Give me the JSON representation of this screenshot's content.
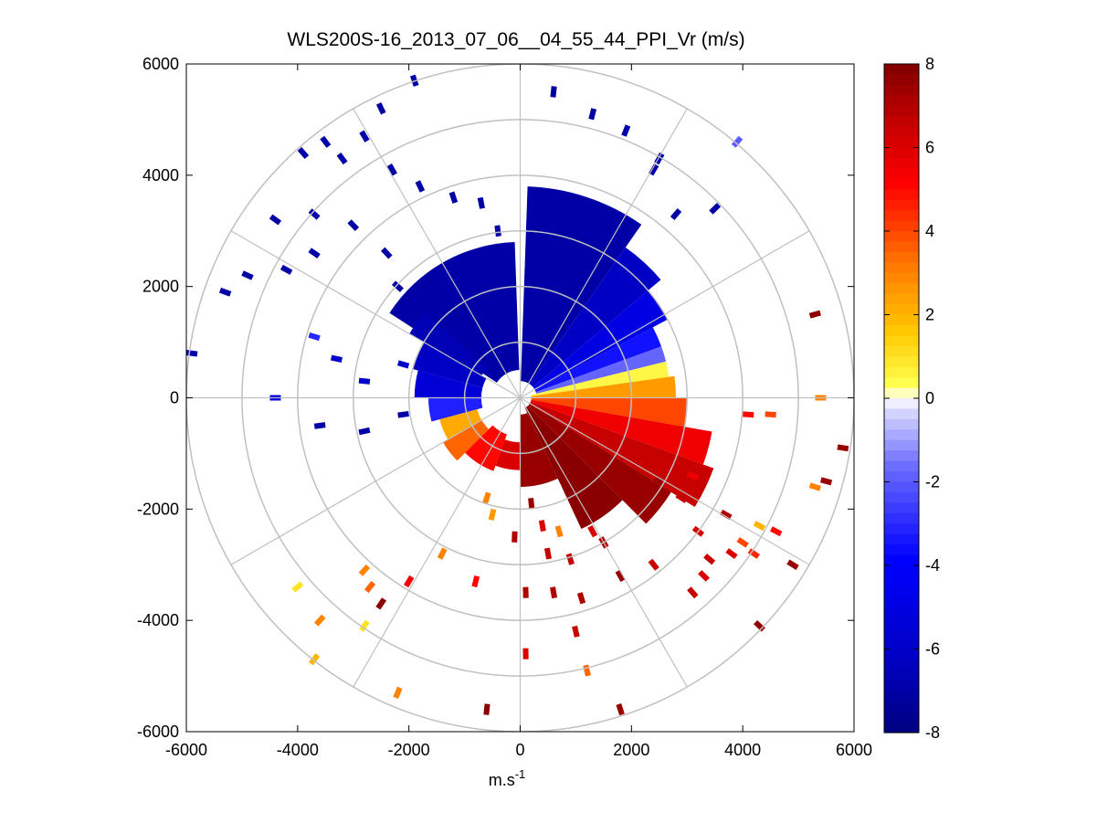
{
  "chart_data": {
    "type": "polar-ppi",
    "title": "WLS200S-16_2013_07_06__04_55_44_PPI_Vr (m/s)",
    "xlabel": "m.s",
    "xlabel_superscript": "-1",
    "ylabel": "",
    "xlim": [
      -6000,
      6000
    ],
    "ylim": [
      -6000,
      6000
    ],
    "x_ticks": [
      -6000,
      -4000,
      -2000,
      0,
      2000,
      4000,
      6000
    ],
    "y_ticks": [
      6000,
      4000,
      2000,
      0,
      -2000,
      -4000,
      -6000
    ],
    "x_tick_labels": [
      "-6000",
      "-4000",
      "-2000",
      "0",
      "2000",
      "4000",
      "6000"
    ],
    "y_tick_labels": [
      "6000",
      "4000",
      "2000",
      "0",
      "-2000",
      "-4000",
      "-6000"
    ],
    "range_rings": [
      1000,
      2000,
      3000,
      4000,
      5000,
      6000
    ],
    "radial_spokes_deg": [
      0,
      30,
      60,
      90,
      120,
      150,
      180,
      210,
      240,
      270,
      300,
      330
    ],
    "colorbar": {
      "min": -8,
      "max": 8,
      "ticks": [
        8,
        6,
        4,
        2,
        0,
        -2,
        -4,
        -6,
        -8
      ],
      "tick_labels": [
        "8",
        "6",
        "4",
        "2",
        "0",
        "-2",
        "-4",
        "-6",
        "-8"
      ]
    },
    "sectors": [
      {
        "az_start": 303,
        "az_end": 358,
        "r_start": 500,
        "r_end": 2800,
        "vr": -7.0
      },
      {
        "az_start": 300,
        "az_end": 312,
        "r_start": 800,
        "r_end": 2300,
        "vr": -6.6
      },
      {
        "az_start": 285,
        "az_end": 300,
        "r_start": 700,
        "r_end": 2000,
        "vr": -6.2
      },
      {
        "az_start": 270,
        "az_end": 285,
        "r_start": 700,
        "r_end": 1900,
        "vr": -5.5
      },
      {
        "az_start": 255,
        "az_end": 270,
        "r_start": 700,
        "r_end": 1650,
        "vr": -3.2
      },
      {
        "az_start": 240,
        "az_end": 255,
        "r_start": 800,
        "r_end": 1500,
        "vr": 2.2
      },
      {
        "az_start": 225,
        "az_end": 240,
        "r_start": 800,
        "r_end": 1600,
        "vr": 3.5
      },
      {
        "az_start": 200,
        "az_end": 225,
        "r_start": 700,
        "r_end": 1400,
        "vr": 5.0
      },
      {
        "az_start": 2,
        "az_end": 35,
        "r_start": 300,
        "r_end": 3800,
        "vr": -7.0
      },
      {
        "az_start": 35,
        "az_end": 50,
        "r_start": 300,
        "r_end": 3300,
        "vr": -6.2
      },
      {
        "az_start": 50,
        "az_end": 62,
        "r_start": 300,
        "r_end": 3000,
        "vr": -5.0
      },
      {
        "az_start": 62,
        "az_end": 70,
        "r_start": 300,
        "r_end": 2700,
        "vr": -3.5
      },
      {
        "az_start": 70,
        "az_end": 76,
        "r_start": 300,
        "r_end": 2700,
        "vr": -1.8
      },
      {
        "az_start": 76,
        "az_end": 82,
        "r_start": 200,
        "r_end": 2700,
        "vr": 0.5
      },
      {
        "az_start": 82,
        "az_end": 90,
        "r_start": 200,
        "r_end": 2800,
        "vr": 2.5
      },
      {
        "az_start": 90,
        "az_end": 100,
        "r_start": 200,
        "r_end": 3000,
        "vr": 4.0
      },
      {
        "az_start": 100,
        "az_end": 110,
        "r_start": 200,
        "r_end": 3500,
        "vr": 5.5
      },
      {
        "az_start": 110,
        "az_end": 122,
        "r_start": 200,
        "r_end": 3700,
        "vr": 6.5
      },
      {
        "az_start": 122,
        "az_end": 135,
        "r_start": 200,
        "r_end": 3200,
        "vr": 7.5
      },
      {
        "az_start": 135,
        "az_end": 155,
        "r_start": 200,
        "r_end": 2600,
        "vr": 7.8
      },
      {
        "az_start": 155,
        "az_end": 180,
        "r_start": 300,
        "r_end": 1600,
        "vr": 7.5
      },
      {
        "az_start": 180,
        "az_end": 200,
        "r_start": 800,
        "r_end": 1300,
        "vr": 6.0
      }
    ],
    "scatter_cells": [
      {
        "x": -5900,
        "y": 800,
        "vr": -7.0
      },
      {
        "x": -5300,
        "y": 1900,
        "vr": -7.0
      },
      {
        "x": -4900,
        "y": 2200,
        "vr": -7.0
      },
      {
        "x": -4400,
        "y": 3200,
        "vr": -7.0
      },
      {
        "x": -3900,
        "y": 4400,
        "vr": -7.0
      },
      {
        "x": -3500,
        "y": 4600,
        "vr": -7.0
      },
      {
        "x": -3200,
        "y": 4300,
        "vr": -7.0
      },
      {
        "x": -2800,
        "y": 4700,
        "vr": -7.0
      },
      {
        "x": -2500,
        "y": 5200,
        "vr": -7.0
      },
      {
        "x": -1900,
        "y": 5700,
        "vr": -7.0
      },
      {
        "x": -2300,
        "y": 4100,
        "vr": -7.0
      },
      {
        "x": -1800,
        "y": 3800,
        "vr": -7.0
      },
      {
        "x": -1200,
        "y": 3600,
        "vr": -7.0
      },
      {
        "x": -700,
        "y": 3500,
        "vr": -7.0
      },
      {
        "x": -400,
        "y": 3000,
        "vr": -7.0
      },
      {
        "x": -3700,
        "y": 3300,
        "vr": -7.0
      },
      {
        "x": -3000,
        "y": 3100,
        "vr": -7.0
      },
      {
        "x": -4200,
        "y": 2300,
        "vr": -7.0
      },
      {
        "x": -3700,
        "y": 2600,
        "vr": -7.0
      },
      {
        "x": -2400,
        "y": 2600,
        "vr": -7.0
      },
      {
        "x": -2200,
        "y": 2000,
        "vr": -7.0
      },
      {
        "x": 600,
        "y": 5500,
        "vr": -7.0
      },
      {
        "x": 1300,
        "y": 5100,
        "vr": -7.0
      },
      {
        "x": 1900,
        "y": 4800,
        "vr": -7.0
      },
      {
        "x": 2400,
        "y": 4100,
        "vr": -7.0
      },
      {
        "x": 2500,
        "y": 4300,
        "vr": -7.0
      },
      {
        "x": 3500,
        "y": 3400,
        "vr": -7.0
      },
      {
        "x": 2800,
        "y": 3300,
        "vr": -7.0
      },
      {
        "x": 3900,
        "y": 4600,
        "vr": -2.0
      },
      {
        "x": -3700,
        "y": 1100,
        "vr": -3.0
      },
      {
        "x": -3300,
        "y": 700,
        "vr": -6.0
      },
      {
        "x": -4400,
        "y": 0,
        "vr": -5.0
      },
      {
        "x": -2800,
        "y": 300,
        "vr": -6.0
      },
      {
        "x": -2100,
        "y": 600,
        "vr": -6.0
      },
      {
        "x": -3600,
        "y": -500,
        "vr": -7.0
      },
      {
        "x": -2800,
        "y": -600,
        "vr": -7.0
      },
      {
        "x": -2100,
        "y": -300,
        "vr": -7.0
      },
      {
        "x": 5300,
        "y": 1500,
        "vr": 7.8
      },
      {
        "x": 5400,
        "y": 0,
        "vr": 3.0
      },
      {
        "x": 4500,
        "y": -300,
        "vr": 4.0
      },
      {
        "x": 4100,
        "y": -300,
        "vr": 5.0
      },
      {
        "x": 5800,
        "y": -900,
        "vr": 7.5
      },
      {
        "x": 5500,
        "y": -1500,
        "vr": 7.5
      },
      {
        "x": 5300,
        "y": -1600,
        "vr": 3.0
      },
      {
        "x": 4600,
        "y": -2400,
        "vr": 5.0
      },
      {
        "x": 4300,
        "y": -2300,
        "vr": 2.0
      },
      {
        "x": 4000,
        "y": -2600,
        "vr": 4.0
      },
      {
        "x": 3800,
        "y": -2800,
        "vr": 6.0
      },
      {
        "x": 3400,
        "y": -2900,
        "vr": 6.5
      },
      {
        "x": 3200,
        "y": -2400,
        "vr": 6.0
      },
      {
        "x": 3700,
        "y": -2100,
        "vr": 7.0
      },
      {
        "x": 3300,
        "y": -3200,
        "vr": 6.0
      },
      {
        "x": 3100,
        "y": -3500,
        "vr": 6.5
      },
      {
        "x": 4200,
        "y": -2800,
        "vr": 4.5
      },
      {
        "x": 4900,
        "y": -3000,
        "vr": 7.5
      },
      {
        "x": 4300,
        "y": -4100,
        "vr": 7.5
      },
      {
        "x": 2400,
        "y": -3000,
        "vr": 6.5
      },
      {
        "x": 1800,
        "y": -3200,
        "vr": 7.5
      },
      {
        "x": 1500,
        "y": -2600,
        "vr": 7.0
      },
      {
        "x": 1300,
        "y": -2400,
        "vr": 6.0
      },
      {
        "x": 700,
        "y": -2400,
        "vr": 3.0
      },
      {
        "x": 400,
        "y": -2300,
        "vr": 6.0
      },
      {
        "x": 500,
        "y": -2800,
        "vr": 6.5
      },
      {
        "x": 900,
        "y": -2900,
        "vr": 6.5
      },
      {
        "x": 100,
        "y": -3500,
        "vr": 7.0
      },
      {
        "x": 600,
        "y": -3500,
        "vr": 7.0
      },
      {
        "x": 1100,
        "y": -3600,
        "vr": 7.0
      },
      {
        "x": 1000,
        "y": -4200,
        "vr": 6.5
      },
      {
        "x": 1200,
        "y": -4900,
        "vr": 3.5
      },
      {
        "x": 100,
        "y": -4600,
        "vr": 6.0
      },
      {
        "x": 1800,
        "y": -5600,
        "vr": 7.5
      },
      {
        "x": -600,
        "y": -5600,
        "vr": 7.8
      },
      {
        "x": -2200,
        "y": -5300,
        "vr": 3.0
      },
      {
        "x": -3700,
        "y": -4700,
        "vr": 2.0
      },
      {
        "x": -3600,
        "y": -4000,
        "vr": 3.0
      },
      {
        "x": -4000,
        "y": -3400,
        "vr": 1.0
      },
      {
        "x": -2800,
        "y": -3100,
        "vr": 3.0
      },
      {
        "x": -2700,
        "y": -3400,
        "vr": 3.5
      },
      {
        "x": -2500,
        "y": -3700,
        "vr": 7.8
      },
      {
        "x": -2000,
        "y": -3300,
        "vr": 5.5
      },
      {
        "x": -1400,
        "y": -2800,
        "vr": 3.0
      },
      {
        "x": -800,
        "y": -3300,
        "vr": 5.0
      },
      {
        "x": -2800,
        "y": -4100,
        "vr": 1.0
      },
      {
        "x": -100,
        "y": -2500,
        "vr": 7.0
      },
      {
        "x": 200,
        "y": -1900,
        "vr": 7.5
      },
      {
        "x": -600,
        "y": -1800,
        "vr": 3.0
      },
      {
        "x": -500,
        "y": -2100,
        "vr": 2.5
      },
      {
        "x": 2500,
        "y": -1500,
        "vr": 7.5
      },
      {
        "x": 2900,
        "y": -1800,
        "vr": 6.5
      },
      {
        "x": 3100,
        "y": -1400,
        "vr": 5.5
      }
    ]
  }
}
